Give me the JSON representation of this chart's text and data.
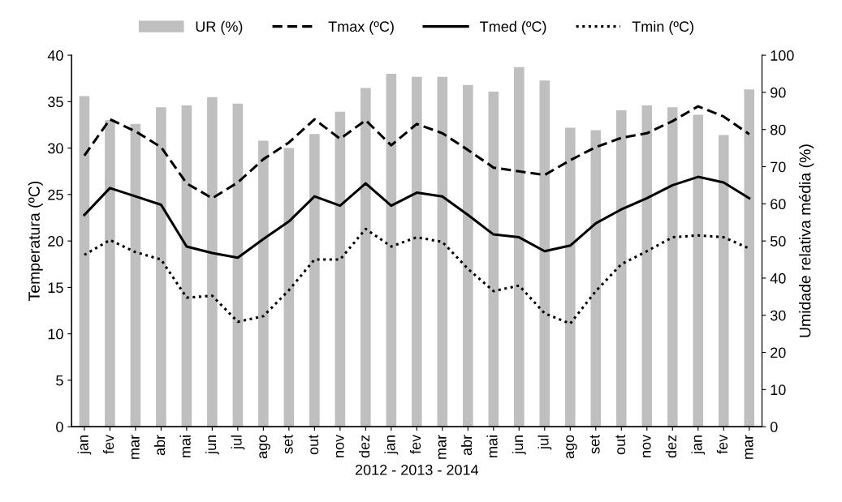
{
  "chart_data": {
    "type": "line",
    "xlabel": "2012 - 2013 - 2014",
    "ylabel": "Temperatura (ºC)",
    "y2label": "Umidade relativa média (%)",
    "categories": [
      "jan",
      "fev",
      "mar",
      "abr",
      "mai",
      "jun",
      "jul",
      "ago",
      "set",
      "out",
      "nov",
      "dez",
      "jan",
      "fev",
      "mar",
      "abr",
      "mai",
      "jun",
      "jul",
      "ago",
      "set",
      "out",
      "nov",
      "dez",
      "jan",
      "fev",
      "mar"
    ],
    "series": [
      {
        "name": "UR (%)",
        "type": "bar",
        "axis": "y2",
        "color": "#bfbfbf",
        "values": [
          89,
          82.5,
          81.5,
          86,
          86.5,
          88.7,
          87,
          77,
          75,
          78.8,
          84.8,
          91.2,
          95,
          94.2,
          94.2,
          92,
          90.2,
          96.8,
          93.2,
          80.5,
          79.8,
          85.2,
          86.5,
          86,
          84,
          78.5,
          90.8
        ]
      },
      {
        "name": "Tmax (ºC)",
        "line_style": "dashed",
        "color": "#000000",
        "values": [
          29.2,
          33.1,
          31.8,
          30.1,
          26.2,
          24.6,
          26.3,
          28.8,
          30.6,
          33.1,
          31.0,
          33.0,
          30.3,
          32.6,
          31.6,
          29.8,
          27.9,
          27.5,
          27.1,
          28.7,
          30.1,
          31.1,
          31.6,
          32.9,
          34.5,
          33.4,
          31.5
        ]
      },
      {
        "name": "Tmed (ºC)",
        "line_style": "solid",
        "color": "#000000",
        "values": [
          22.8,
          25.7,
          24.8,
          23.9,
          19.4,
          18.7,
          18.2,
          20.2,
          22.1,
          24.8,
          23.8,
          26.2,
          23.8,
          25.2,
          24.8,
          22.8,
          20.7,
          20.4,
          18.9,
          19.5,
          21.9,
          23.4,
          24.6,
          26.0,
          26.9,
          26.3,
          24.6
        ]
      },
      {
        "name": "Tmin (ºC)",
        "line_style": "dotted",
        "color": "#000000",
        "values": [
          18.5,
          20.1,
          18.8,
          18.0,
          13.9,
          14.1,
          11.3,
          11.9,
          14.7,
          18.0,
          18.0,
          21.3,
          19.4,
          20.4,
          19.9,
          17.0,
          14.6,
          15.2,
          12.2,
          11.1,
          14.6,
          17.5,
          18.9,
          20.4,
          20.6,
          20.4,
          19.2
        ]
      }
    ],
    "ylim": [
      0,
      40
    ],
    "yticks": [
      0,
      5,
      10,
      15,
      20,
      25,
      30,
      35,
      40
    ],
    "y2lim": [
      0,
      100
    ],
    "y2ticks": [
      0,
      10,
      20,
      30,
      40,
      50,
      60,
      70,
      80,
      90,
      100
    ],
    "legend": "top",
    "grid": false,
    "marker": "none"
  }
}
